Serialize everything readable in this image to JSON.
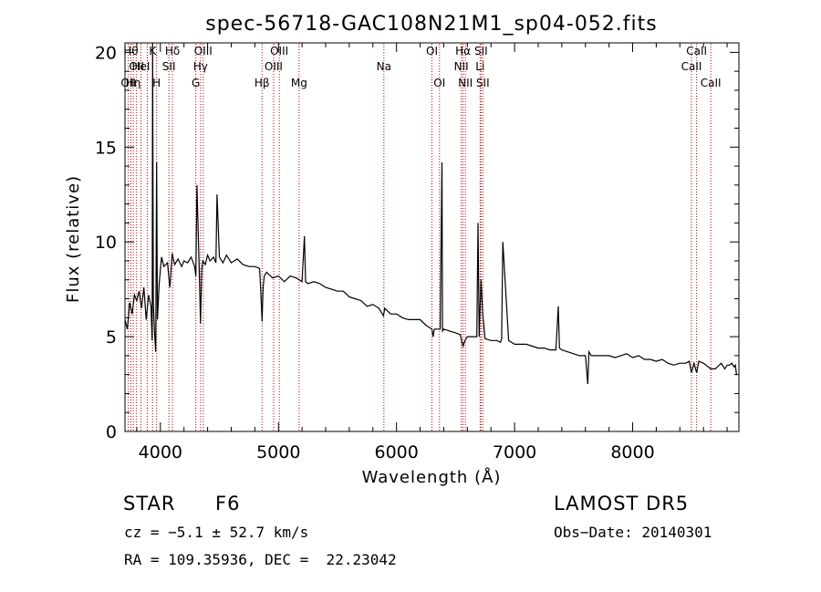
{
  "chart_data": {
    "type": "line",
    "title": "spec-56718-GAC108N21M1_sp04-052.fits",
    "xlabel": "Wavelength (Å)",
    "ylabel": "Flux (relative)",
    "xlim": [
      3700,
      8900
    ],
    "ylim": [
      0,
      20.5
    ],
    "xticks": [
      4000,
      5000,
      6000,
      7000,
      8000
    ],
    "yticks": [
      0,
      5,
      10,
      15,
      20
    ],
    "grid": false,
    "series": [
      {
        "x": [
          3700,
          3720,
          3740,
          3760,
          3780,
          3800,
          3820,
          3840,
          3860,
          3880,
          3900,
          3920,
          3930,
          3934,
          3940,
          3950,
          3960,
          3968,
          3975,
          3990,
          4010,
          4030,
          4060,
          4080,
          4100,
          4120,
          4150,
          4180,
          4200,
          4230,
          4260,
          4290,
          4300,
          4310,
          4330,
          4340,
          4350,
          4360,
          4380,
          4400,
          4420,
          4450,
          4470,
          4480,
          4500,
          4530,
          4560,
          4600,
          4650,
          4700,
          4750,
          4800,
          4840,
          4850,
          4861,
          4870,
          4880,
          4900,
          4950,
          5000,
          5050,
          5100,
          5150,
          5200,
          5220,
          5230,
          5250,
          5300,
          5350,
          5400,
          5450,
          5500,
          5550,
          5600,
          5650,
          5700,
          5750,
          5800,
          5850,
          5890,
          5900,
          5950,
          6000,
          6050,
          6100,
          6150,
          6200,
          6250,
          6300,
          6310,
          6320,
          6350,
          6370,
          6385,
          6390,
          6400,
          6450,
          6500,
          6540,
          6563,
          6580,
          6600,
          6650,
          6680,
          6690,
          6700,
          6716,
          6730,
          6750,
          6800,
          6850,
          6880,
          6890,
          6900,
          6950,
          7000,
          7050,
          7100,
          7150,
          7200,
          7250,
          7300,
          7350,
          7370,
          7380,
          7400,
          7450,
          7500,
          7550,
          7600,
          7620,
          7630,
          7650,
          7700,
          7750,
          7800,
          7850,
          7900,
          7950,
          8000,
          8050,
          8100,
          8150,
          8200,
          8250,
          8300,
          8350,
          8400,
          8450,
          8480,
          8498,
          8520,
          8542,
          8560,
          8600,
          8662,
          8700,
          8750,
          8780,
          8800,
          8820,
          8840,
          8860,
          8870,
          8880
        ],
        "y": [
          5.9,
          5.4,
          6.8,
          6.2,
          7.2,
          6.9,
          7.4,
          6.5,
          7.6,
          5.9,
          7.2,
          6.6,
          4.8,
          20.5,
          6.8,
          5.2,
          4.2,
          14.2,
          5.9,
          7.8,
          9.2,
          8.7,
          8.9,
          7.6,
          9.4,
          8.8,
          9.1,
          8.7,
          9.0,
          8.9,
          9.2,
          8.7,
          8.2,
          13.0,
          8.3,
          5.7,
          8.5,
          9.0,
          8.8,
          9.3,
          9.0,
          9.2,
          8.9,
          12.5,
          9.2,
          8.9,
          9.3,
          8.9,
          9.1,
          8.8,
          8.7,
          8.7,
          8.6,
          7.5,
          5.8,
          7.6,
          8.2,
          8.4,
          8.1,
          8.2,
          7.9,
          8.2,
          8.1,
          7.9,
          10.3,
          7.9,
          7.8,
          7.9,
          7.8,
          7.6,
          7.5,
          7.4,
          7.4,
          7.1,
          7.0,
          6.9,
          6.6,
          6.7,
          6.5,
          6.1,
          6.5,
          6.2,
          6.2,
          6.0,
          5.9,
          5.9,
          5.9,
          5.6,
          5.4,
          5.0,
          5.4,
          5.4,
          5.4,
          14.2,
          5.3,
          5.4,
          5.3,
          5.2,
          5.1,
          4.5,
          4.8,
          5.0,
          5.0,
          5.0,
          11.0,
          5.0,
          8.0,
          6.2,
          4.9,
          4.8,
          4.8,
          4.7,
          4.9,
          10.0,
          4.8,
          4.6,
          4.6,
          4.6,
          4.5,
          4.4,
          4.4,
          4.3,
          4.3,
          6.6,
          4.4,
          4.3,
          4.2,
          4.1,
          4.0,
          4.0,
          2.5,
          4.2,
          4.0,
          4.0,
          4.0,
          4.0,
          3.9,
          4.0,
          4.1,
          3.9,
          4.0,
          3.8,
          3.8,
          3.7,
          3.8,
          3.6,
          3.5,
          3.6,
          3.6,
          3.7,
          3.1,
          3.6,
          3.1,
          3.7,
          3.6,
          3.3,
          3.3,
          3.6,
          3.3,
          3.5,
          3.5,
          3.6,
          3.4,
          3.5,
          3.0
        ]
      }
    ],
    "line_markers": [
      {
        "w": 3728,
        "label": "OII",
        "row": 2
      },
      {
        "w": 3750,
        "label": "Hθ",
        "row": 0
      },
      {
        "w": 3770,
        "label": "Hη",
        "row": 2
      },
      {
        "w": 3798,
        "label": "OII",
        "row": 1
      },
      {
        "w": 3835,
        "label": "HeI",
        "row": 1
      },
      {
        "w": 3889,
        "label": "",
        "row": 0
      },
      {
        "w": 3934,
        "label": "K",
        "row": 0
      },
      {
        "w": 3968,
        "label": "H",
        "row": 2
      },
      {
        "w": 4072,
        "label": "SII",
        "row": 1
      },
      {
        "w": 4102,
        "label": "Hδ",
        "row": 0
      },
      {
        "w": 4300,
        "label": "G",
        "row": 2
      },
      {
        "w": 4340,
        "label": "Hγ",
        "row": 1
      },
      {
        "w": 4363,
        "label": "OIII",
        "row": 0
      },
      {
        "w": 4861,
        "label": "Hβ",
        "row": 2
      },
      {
        "w": 4959,
        "label": "OIII",
        "row": 1
      },
      {
        "w": 5007,
        "label": "OIII",
        "row": 0
      },
      {
        "w": 5175,
        "label": "Mg",
        "row": 2
      },
      {
        "w": 5893,
        "label": "Na",
        "row": 1
      },
      {
        "w": 6300,
        "label": "OI",
        "row": 0
      },
      {
        "w": 6364,
        "label": "OI",
        "row": 2
      },
      {
        "w": 6548,
        "label": "NII",
        "row": 1
      },
      {
        "w": 6563,
        "label": "Hα",
        "row": 0
      },
      {
        "w": 6583,
        "label": "NII",
        "row": 2
      },
      {
        "w": 6708,
        "label": "Li",
        "row": 1
      },
      {
        "w": 6716,
        "label": "SII",
        "row": 0
      },
      {
        "w": 6731,
        "label": "SII",
        "row": 2
      },
      {
        "w": 8498,
        "label": "CaII",
        "row": 1
      },
      {
        "w": 8542,
        "label": "CaII",
        "row": 0
      },
      {
        "w": 8662,
        "label": "CaII",
        "row": 2
      }
    ]
  },
  "info": {
    "class": "STAR",
    "subclass": "F6",
    "survey": "LAMOST DR5",
    "cz": "cz = −5.1 ± 52.7 km/s",
    "obs_date": "Obs−Date: 20140301",
    "radec": "RA = 109.35936, DEC =  22.23042"
  },
  "colors": {
    "spectrum": "#000000",
    "line_marker": "#c00000"
  }
}
